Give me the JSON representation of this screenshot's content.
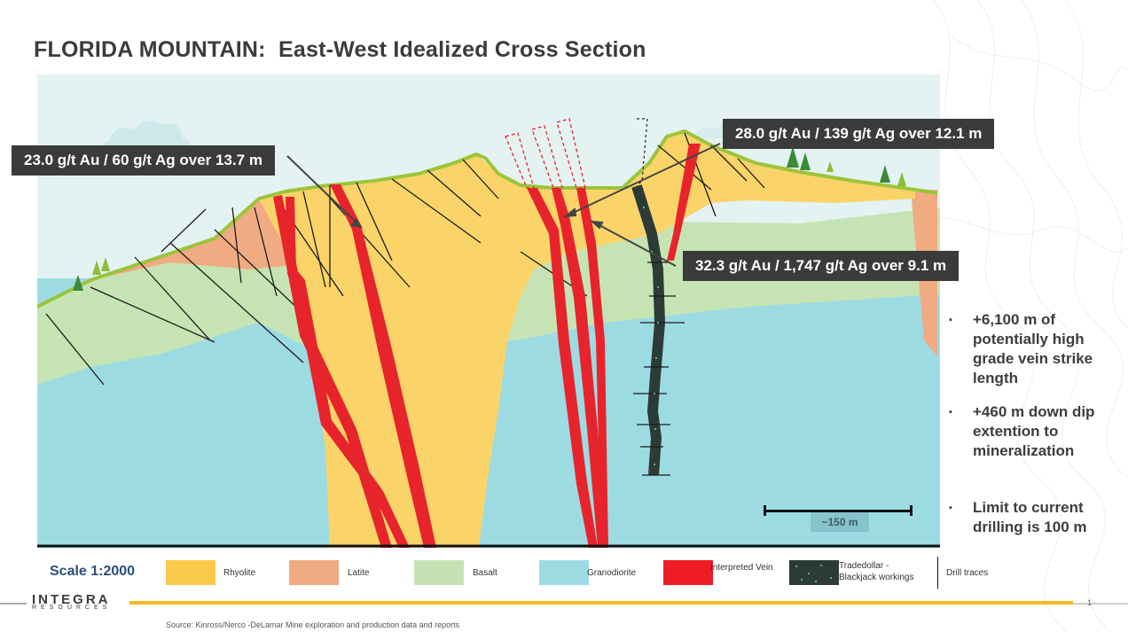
{
  "title": "FLORIDA MOUNTAIN:  East-West Idealized Cross Section",
  "callouts": {
    "left": "23.0 g/t Au / 60 g/t Ag over 13.7 m",
    "top_right": "28.0 g/t Au / 139 g/t Ag over 12.1 m",
    "mid_right": "32.3 g/t Au / 1,747 g/t Ag over 9.1 m"
  },
  "bullets": [
    "+6,100 m of potentially high grade vein strike length",
    "+460 m down dip extention to mineralization",
    "Limit to current drilling is 100 m"
  ],
  "bullet_mark": "▪",
  "scale_bar_label": "~150 m",
  "legend": {
    "scale": "Scale 1:2000",
    "items": [
      {
        "label": "Rhyolite",
        "color": "#fbc94c"
      },
      {
        "label": "Latite",
        "color": "#f0ab82"
      },
      {
        "label": "Basalt",
        "color": "#c6e2b3"
      },
      {
        "label": "Granodiorite",
        "color": "#9ddbe3"
      },
      {
        "label": "Interpreted Vein",
        "color": "#ee1c24"
      },
      {
        "label_line1": "Tradedollar -",
        "label_line2": "Blackjack workings",
        "color": "#2c3b36"
      },
      {
        "label": "Drill traces",
        "color": "#111111"
      }
    ]
  },
  "logo": {
    "name": "INTEGRA",
    "sub": "RESOURCES"
  },
  "page_number": "1",
  "source": "Source: Kinross/Nerco -DeLamar Mine exploration and production data and reports",
  "colors": {
    "sky": "#e4f2f2",
    "rhyolite": "#fbd469",
    "latite": "#f0ab82",
    "basalt": "#c6e4b3",
    "granodiorite": "#9ddbe3",
    "vein": "#e7242b",
    "workings": "#2c3b36",
    "grass": "#9cc43b",
    "callout_bg": "#3b3b3b",
    "accent_gold": "#f3b922"
  }
}
